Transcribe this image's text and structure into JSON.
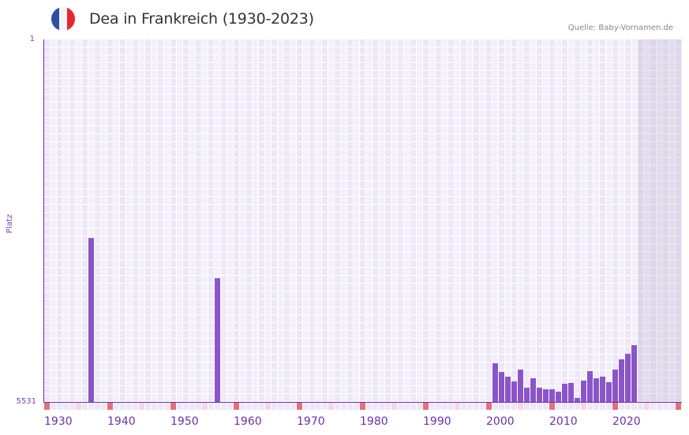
{
  "header": {
    "title": "Dea in Frankreich (1930-2023)",
    "source": "Quelle: Baby-Vornamen.de",
    "flag_icon": "france-flag-icon",
    "flag_colors": [
      "#2f4fa2",
      "#f4f4f6",
      "#e8262f"
    ]
  },
  "colors": {
    "bar": "#8a55c8",
    "axis": "#6a32a8",
    "decade_marker": "#e3707d",
    "half_decade_marker": "#f5d8e2",
    "grid_a": "#ede7f8",
    "grid_b": "#f3effb"
  },
  "axis": {
    "ylabel": "Platz",
    "ytick_top": "1",
    "ytick_bottom": "5531",
    "xticks": [
      "1930",
      "1940",
      "1950",
      "1960",
      "1970",
      "1980",
      "1990",
      "2000",
      "2010",
      "2020"
    ]
  },
  "chart_data": {
    "type": "bar",
    "title": "Dea in Frankreich (1930-2023)",
    "xlabel": "",
    "ylabel": "Platz",
    "ylim": [
      5531,
      1
    ],
    "y_inverted": true,
    "x_range": [
      1930,
      2030
    ],
    "shaded_future_from": 2024,
    "grid": true,
    "legend": null,
    "annotations": [
      "Quelle: Baby-Vornamen.de"
    ],
    "x": [
      1937,
      1957,
      2001,
      2002,
      2003,
      2004,
      2005,
      2006,
      2007,
      2008,
      2009,
      2010,
      2011,
      2012,
      2013,
      2014,
      2015,
      2016,
      2017,
      2018,
      2019,
      2020,
      2021,
      2022,
      2023
    ],
    "values": [
      3030,
      3644,
      4942,
      5074,
      5146,
      5218,
      5038,
      5315,
      5170,
      5315,
      5339,
      5339,
      5375,
      5255,
      5243,
      5471,
      5206,
      5062,
      5170,
      5146,
      5230,
      5038,
      4882,
      4798,
      4666
    ]
  }
}
